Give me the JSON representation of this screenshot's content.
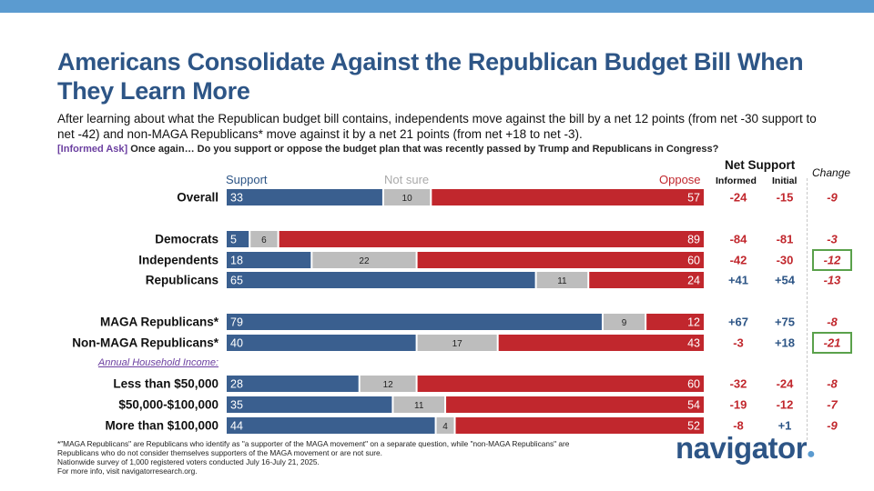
{
  "title": "Americans Consolidate Against the Republican Budget Bill When They Learn More",
  "subtitle": "After learning about what the Republican budget bill contains, independents move against the bill by a net 12 points (from net -30 support to net -42) and non-MAGA Republicans* move against it by a net 21 points (from net +18 to net -3).",
  "question_tag": "[Informed Ask]",
  "question_text": "Once again… Do you support or oppose the budget plan that was recently passed by Trump and Republicans in Congress?",
  "headers": {
    "support": "Support",
    "not_sure": "Not sure",
    "oppose": "Oppose",
    "net_support": "Net Support",
    "informed": "Informed",
    "initial": "Initial",
    "change": "Change"
  },
  "group_label": "Annual Household Income:",
  "colors": {
    "support": "#3a5f8f",
    "not_sure": "#bdbdbd",
    "oppose": "#c1272d",
    "net_text": "#c1272d",
    "net_positive": "#2d5586",
    "highlight_box": "#5aa14b"
  },
  "chart_data": {
    "type": "bar",
    "orientation": "horizontal",
    "stacked": true,
    "title": "Americans Consolidate Against the Republican Budget Bill When They Learn More",
    "xlim": [
      0,
      100
    ],
    "series_names": [
      "Support",
      "Not sure",
      "Oppose"
    ],
    "rows": [
      {
        "label": "Overall",
        "support": 33,
        "not_sure": 10,
        "oppose": 57,
        "informed": "-24",
        "initial": "-15",
        "change": "-9",
        "highlight": false
      },
      {
        "label": "Democrats",
        "support": 5,
        "not_sure": 6,
        "oppose": 89,
        "informed": "-84",
        "initial": "-81",
        "change": "-3",
        "highlight": false
      },
      {
        "label": "Independents",
        "support": 18,
        "not_sure": 22,
        "oppose": 60,
        "informed": "-42",
        "initial": "-30",
        "change": "-12",
        "highlight": true
      },
      {
        "label": "Republicans",
        "support": 65,
        "not_sure": 11,
        "oppose": 24,
        "informed": "+41",
        "initial": "+54",
        "change": "-13",
        "highlight": false
      },
      {
        "label": "MAGA Republicans*",
        "support": 79,
        "not_sure": 9,
        "oppose": 12,
        "informed": "+67",
        "initial": "+75",
        "change": "-8",
        "highlight": false
      },
      {
        "label": "Non-MAGA Republicans*",
        "support": 40,
        "not_sure": 17,
        "oppose": 43,
        "informed": "-3",
        "initial": "+18",
        "change": "-21",
        "highlight": true
      },
      {
        "label": "Less than $50,000",
        "support": 28,
        "not_sure": 12,
        "oppose": 60,
        "informed": "-32",
        "initial": "-24",
        "change": "-8",
        "highlight": false
      },
      {
        "label": "$50,000-$100,000",
        "support": 35,
        "not_sure": 11,
        "oppose": 54,
        "informed": "-19",
        "initial": "-12",
        "change": "-7",
        "highlight": false
      },
      {
        "label": "More than $100,000",
        "support": 44,
        "not_sure": 4,
        "oppose": 52,
        "informed": "-8",
        "initial": "+1",
        "change": "-9",
        "highlight": false
      }
    ]
  },
  "footnote": [
    "*\"MAGA Republicans\" are Republicans who identify as \"a supporter of the MAGA movement\" on a separate question, while \"non-MAGA Republicans\" are Republicans who do not consider themselves supporters of the MAGA movement or are not sure.",
    "Nationwide survey of 1,000 registered voters conducted July 16-July 21, 2025.",
    "For more info, visit navigatorresearch.org."
  ],
  "logo": "navigator"
}
